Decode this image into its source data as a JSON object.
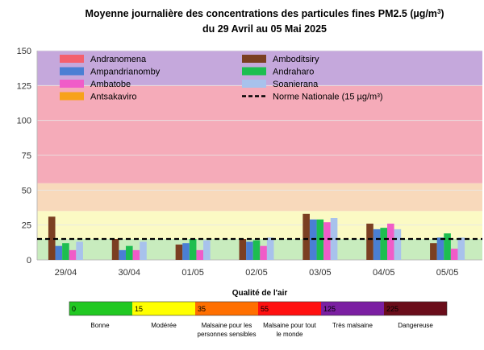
{
  "chart_data": {
    "type": "bar",
    "title_line1": "Moyenne journalière des concentrations des particules fines PM2.5 (µg/m",
    "title_sup": "3",
    "title_line1_end": ")",
    "title_line2": "du 29 Avril au 05 Mai 2025",
    "categories": [
      "29/04",
      "30/04",
      "01/05",
      "02/05",
      "03/05",
      "04/05",
      "05/05"
    ],
    "ylim": [
      0,
      150
    ],
    "yticks": [
      0,
      25,
      50,
      75,
      100,
      125,
      150
    ],
    "series": [
      {
        "name": "Andranomena",
        "color": "#f4606e",
        "values": [
          null,
          null,
          null,
          null,
          null,
          null,
          null
        ]
      },
      {
        "name": "Amboditsiry",
        "color": "#7b3f22",
        "values": [
          31,
          15,
          11,
          15,
          33,
          26,
          12
        ]
      },
      {
        "name": "Ampandrianomby",
        "color": "#4a7fd4",
        "values": [
          10,
          7,
          12,
          13,
          29,
          22,
          16
        ]
      },
      {
        "name": "Andraharo",
        "color": "#1dbe50",
        "values": [
          12,
          10,
          15,
          14,
          29,
          23,
          19
        ]
      },
      {
        "name": "Ambatobe",
        "color": "#f05cc8",
        "values": [
          7,
          7,
          7,
          10,
          27,
          26,
          8
        ]
      },
      {
        "name": "Soanierana",
        "color": "#a8c2ec",
        "values": [
          13,
          13,
          14,
          16,
          30,
          22,
          16
        ]
      },
      {
        "name": "Antsakaviro",
        "color": "#f7a21b",
        "values": [
          null,
          null,
          null,
          null,
          null,
          null,
          null
        ]
      }
    ],
    "norm": {
      "name": "Norme Nationale (15 µg/m3)",
      "value": 15
    },
    "bands": [
      {
        "from": 0,
        "to": 15,
        "color": "#c8ecbe"
      },
      {
        "from": 15,
        "to": 35,
        "color": "#fbfac4"
      },
      {
        "from": 35,
        "to": 55,
        "color": "#f8d9bb"
      },
      {
        "from": 55,
        "to": 125,
        "color": "#f5abb9"
      },
      {
        "from": 125,
        "to": 150,
        "color": "#c5a8dc"
      }
    ],
    "legend_placement": "top-left, two columns"
  },
  "air_quality": {
    "title": "Qualité de l'air",
    "scale": [
      {
        "value": "0",
        "color": "#21c822",
        "labels": [
          "Bonne"
        ]
      },
      {
        "value": "15",
        "color": "#ffff00",
        "labels": [
          "Modérée"
        ]
      },
      {
        "value": "35",
        "color": "#ff6f00",
        "labels": [
          "Malsaine pour les",
          "personnes sensibles"
        ]
      },
      {
        "value": "55",
        "color": "#ff1010",
        "labels": [
          "Malsaine pour tout",
          "le monde"
        ]
      },
      {
        "value": "125",
        "color": "#7b1fa2",
        "labels": [
          "Très malsaine"
        ]
      },
      {
        "value": "225",
        "color": "#6a0d1a",
        "labels": [
          "Dangereuse"
        ]
      }
    ]
  }
}
